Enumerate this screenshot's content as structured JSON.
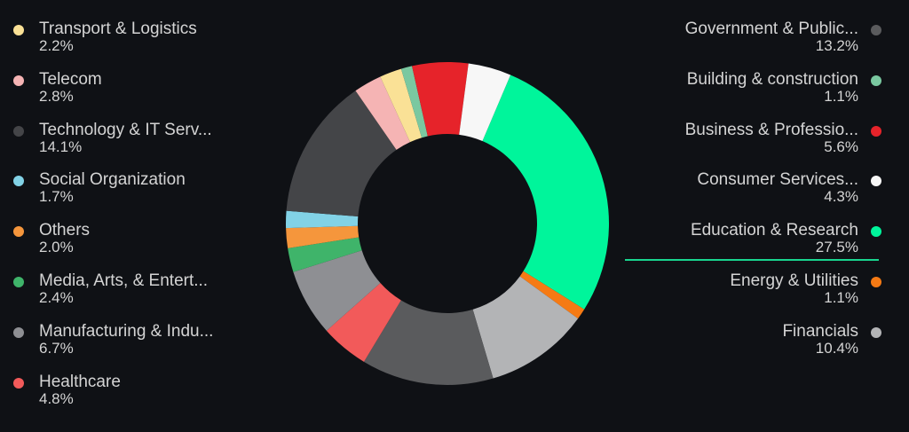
{
  "chart_data": {
    "type": "pie",
    "donut": true,
    "title": "",
    "legend_placement": "left-and-right",
    "highlighted": "Education & Research",
    "slices": [
      {
        "label": "Education & Research",
        "value": 27.5,
        "display": "27.5%",
        "color": "#00f59b"
      },
      {
        "label": "Energy & Utilities",
        "value": 1.1,
        "display": "1.1%",
        "color": "#f57a14"
      },
      {
        "label": "Financials",
        "value": 10.4,
        "display": "10.4%",
        "color": "#b3b4b6"
      },
      {
        "label": "Government & Public...",
        "value": 13.2,
        "display": "13.2%",
        "color": "#5a5b5d"
      },
      {
        "label": "Healthcare",
        "value": 4.8,
        "display": "4.8%",
        "color": "#f25a5a"
      },
      {
        "label": "Manufacturing & Indu...",
        "value": 6.7,
        "display": "6.7%",
        "color": "#8e8f93"
      },
      {
        "label": "Media, Arts, & Entert...",
        "value": 2.4,
        "display": "2.4%",
        "color": "#3fb46a"
      },
      {
        "label": "Others",
        "value": 2.0,
        "display": "2.0%",
        "color": "#f5963c"
      },
      {
        "label": "Social Organization",
        "value": 1.7,
        "display": "1.7%",
        "color": "#82d2e6"
      },
      {
        "label": "Technology & IT Serv...",
        "value": 14.1,
        "display": "14.1%",
        "color": "#444548"
      },
      {
        "label": "Telecom",
        "value": 2.8,
        "display": "2.8%",
        "color": "#f5b4b4"
      },
      {
        "label": "Transport & Logistics",
        "value": 2.2,
        "display": "2.2%",
        "color": "#fae196"
      },
      {
        "label": "Building & construction",
        "value": 1.1,
        "display": "1.1%",
        "color": "#7ac8a0"
      },
      {
        "label": "Business & Professio...",
        "value": 5.6,
        "display": "5.6%",
        "color": "#e6232a"
      },
      {
        "label": "Consumer Services...",
        "value": 4.3,
        "display": "4.3%",
        "color": "#f7f7f7"
      }
    ],
    "legend_left": [
      11,
      10,
      9,
      8,
      7,
      6,
      5,
      4
    ],
    "legend_right": [
      3,
      12,
      13,
      14,
      0,
      1,
      2
    ]
  }
}
